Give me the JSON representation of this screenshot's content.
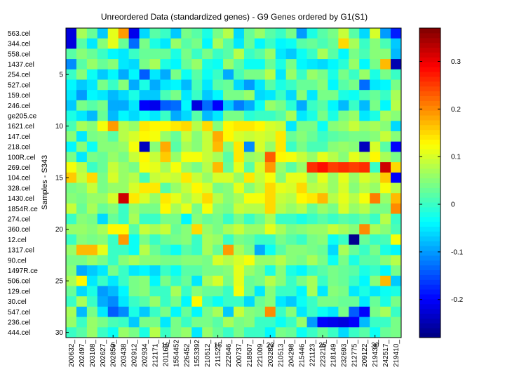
{
  "chart_data": {
    "type": "heatmap",
    "title": "Unreordered Data (standardized genes) - G9 Genes ordered by G1(S1)",
    "ylabel": "Samples - S343",
    "xlabel": "",
    "n_rows": 30,
    "n_cols": 32,
    "row_labels": [
      "563.cel",
      "344.cel",
      "558.cel",
      "1437.cel",
      "254.cel",
      "527.cel",
      "159.cel",
      "246.cel",
      "ge205.ce",
      "1621.cel",
      "147.cel",
      "218.cel",
      "100R.cel",
      "269.cel",
      "104.cel",
      "328.cel",
      "1430.cel",
      "1854R.ce",
      "274.cel",
      "360.cel",
      "12.cel",
      "1317.cel",
      "90.cel",
      "1497R.ce",
      "506.cel",
      "129.cel",
      "30.cel",
      "547.cel",
      "236.cel",
      "444.cel"
    ],
    "row_ticks": [
      5,
      10,
      15,
      20,
      25,
      30
    ],
    "col_labels": [
      "200632_",
      "202497_",
      "203108_",
      "202627_",
      "202859_",
      "203438_",
      "202912_",
      "202934_",
      "212171_",
      "201169_",
      "1554452",
      "226452_",
      "1553392",
      "210512_",
      "211527_",
      "222646_",
      "200737_",
      "218507_",
      "221009_",
      "203282_",
      "210513_",
      "204298_",
      "215446_",
      "221123_",
      "223216_",
      "218149_",
      "232693_",
      "212775_",
      "209122_",
      "219434_",
      "242517_",
      "219410_"
    ],
    "col_ticks": [
      5,
      10,
      15,
      20,
      25,
      30
    ],
    "colorbar_ticks": [
      -0.2,
      -0.1,
      0,
      0.1,
      0.2,
      0.3
    ],
    "colorbar_tick_labels": [
      "-0.2",
      "-0.1",
      "0",
      "0.1",
      "0.2",
      "0.3"
    ],
    "clim": [
      -0.28,
      0.37
    ],
    "colormap": "jet",
    "values": [
      [
        -0.22,
        0.07,
        0.03,
        -0.07,
        0.11,
        0.19,
        -0.21,
        -0.06,
        0.02,
        0.0,
        -0.07,
        0.04,
        0.02,
        -0.02,
        0.04,
        0.08,
        -0.06,
        0.03,
        0.06,
        0.02,
        0.0,
        0.04,
        -0.1,
        -0.02,
        0.02,
        0.04,
        0.09,
        0.02,
        -0.06,
        0.1,
        -0.1,
        -0.18
      ],
      [
        -0.22,
        0.02,
        -0.05,
        0.05,
        0.11,
        0.03,
        -0.13,
        0.04,
        -0.02,
        -0.05,
        0.06,
        0.02,
        0.04,
        -0.04,
        0.07,
        0.02,
        -0.05,
        0.03,
        -0.04,
        0.0,
        -0.04,
        -0.03,
        0.02,
        0.03,
        0.01,
        0.03,
        0.15,
        0.07,
        0.0,
        0.05,
        0.01,
        -0.07
      ],
      [
        0.02,
        0.05,
        0.03,
        0.0,
        -0.04,
        -0.05,
        0.0,
        0.03,
        0.03,
        0.03,
        -0.02,
        0.04,
        0.0,
        0.04,
        0.0,
        0.02,
        0.08,
        0.0,
        0.02,
        0.06,
        -0.05,
        -0.07,
        -0.03,
        0.0,
        0.07,
        0.02,
        -0.04,
        0.04,
        0.01,
        0.05,
        0.05,
        -0.08
      ],
      [
        -0.11,
        0.02,
        0.06,
        0.03,
        0.05,
        -0.05,
        -0.06,
        0.04,
        0.07,
        -0.02,
        -0.04,
        0.03,
        0.06,
        -0.02,
        -0.03,
        0.06,
        0.02,
        -0.03,
        -0.03,
        0.03,
        -0.02,
        0.04,
        -0.04,
        -0.05,
        -0.06,
        -0.04,
        -0.01,
        0.06,
        -0.04,
        0.04,
        0.17,
        -0.25
      ],
      [
        0.0,
        0.05,
        -0.03,
        -0.07,
        -0.04,
        -0.09,
        -0.04,
        -0.14,
        -0.05,
        -0.09,
        0.04,
        -0.03,
        0.02,
        -0.03,
        0.0,
        -0.09,
        0.01,
        0.04,
        0.04,
        0.08,
        -0.05,
        0.06,
        0.0,
        0.06,
        0.04,
        -0.02,
        0.04,
        0.0,
        0.06,
        -0.02,
        0.04,
        0.0
      ],
      [
        -0.04,
        -0.07,
        -0.05,
        0.04,
        0.0,
        0.05,
        -0.09,
        -0.02,
        -0.09,
        -0.05,
        -0.04,
        -0.08,
        0.01,
        -0.05,
        0.02,
        0.03,
        -0.06,
        -0.1,
        -0.05,
        0.02,
        -0.02,
        0.0,
        0.03,
        0.03,
        0.05,
        -0.04,
        0.02,
        0.04,
        -0.13,
        -0.05,
        -0.04,
        0.04
      ],
      [
        -0.05,
        -0.1,
        -0.04,
        -0.05,
        -0.08,
        -0.06,
        -0.02,
        -0.07,
        -0.07,
        0.01,
        0.04,
        -0.05,
        0.0,
        -0.07,
        -0.04,
        0.04,
        0.04,
        0.06,
        -0.06,
        -0.05,
        0.0,
        -0.06,
        0.05,
        -0.05,
        0.04,
        0.04,
        -0.02,
        -0.03,
        0.01,
        0.03,
        0.0,
        0.07
      ],
      [
        -0.07,
        0.04,
        0.02,
        0.04,
        -0.09,
        -0.09,
        -0.05,
        -0.2,
        -0.21,
        -0.14,
        -0.13,
        -0.04,
        -0.22,
        -0.13,
        -0.2,
        -0.07,
        -0.12,
        -0.09,
        -0.03,
        0.06,
        0.04,
        -0.01,
        -0.09,
        0.0,
        0.02,
        -0.04,
        -0.08,
        0.0,
        -0.08,
        0.04,
        -0.04,
        0.08
      ],
      [
        -0.02,
        -0.05,
        -0.08,
        0.03,
        -0.08,
        -0.04,
        -0.06,
        -0.03,
        -0.05,
        0.0,
        -0.09,
        -0.06,
        0.02,
        -0.08,
        -0.05,
        0.04,
        0.04,
        -0.01,
        0.0,
        0.0,
        0.02,
        0.07,
        -0.05,
        -0.02,
        0.04,
        -0.02,
        0.04,
        0.06,
        -0.05,
        -0.02,
        0.07,
        0.05
      ],
      [
        0.01,
        0.07,
        0.05,
        0.12,
        0.19,
        0.08,
        0.06,
        0.14,
        0.13,
        0.13,
        0.14,
        0.15,
        0.08,
        0.15,
        0.05,
        0.13,
        0.14,
        0.14,
        0.13,
        0.1,
        0.09,
        -0.05,
        0.04,
        0.04,
        -0.03,
        0.05,
        0.06,
        0.09,
        0.06,
        0.07,
        0.05,
        -0.06
      ],
      [
        0.05,
        -0.05,
        0.04,
        0.05,
        0.02,
        0.08,
        0.1,
        0.13,
        0.12,
        0.06,
        0.03,
        0.09,
        0.05,
        0.09,
        0.18,
        0.13,
        0.1,
        0.09,
        0.1,
        0.09,
        0.14,
        0.03,
        0.05,
        0.03,
        0.0,
        0.02,
        0.03,
        0.04,
        0.04,
        0.05,
        0.09,
        0.05
      ],
      [
        -0.04,
        0.05,
        -0.03,
        0.05,
        0.05,
        0.06,
        0.12,
        -0.24,
        0.05,
        0.18,
        0.02,
        0.07,
        0.05,
        0.09,
        0.17,
        0.05,
        0.14,
        -0.11,
        0.1,
        0.06,
        0.14,
        0.0,
        0.04,
        0.01,
        0.01,
        0.05,
        0.06,
        0.05,
        -0.24,
        0.1,
        0.02,
        -0.2
      ],
      [
        0.04,
        -0.05,
        0.04,
        0.03,
        0.06,
        0.04,
        0.09,
        0.13,
        0.09,
        0.16,
        0.06,
        0.12,
        0.12,
        0.09,
        0.07,
        0.02,
        0.14,
        0.06,
        0.07,
        0.23,
        0.13,
        0.12,
        0.09,
        0.06,
        0.11,
        0.08,
        0.05,
        0.11,
        0.08,
        0.13,
        0.07,
        0.04
      ],
      [
        0.12,
        0.08,
        0.0,
        0.03,
        0.09,
        0.06,
        0.04,
        0.12,
        0.11,
        0.07,
        0.12,
        0.06,
        0.04,
        0.08,
        0.17,
        0.03,
        0.11,
        0.02,
        0.1,
        0.19,
        0.06,
        0.02,
        0.06,
        0.26,
        0.28,
        0.25,
        0.26,
        0.25,
        0.26,
        0.0,
        0.32,
        0.15
      ],
      [
        0.16,
        0.09,
        0.15,
        0.04,
        0.1,
        0.06,
        0.08,
        0.01,
        0.09,
        0.1,
        0.09,
        0.14,
        0.09,
        0.06,
        0.1,
        0.1,
        0.06,
        0.14,
        0.09,
        0.12,
        0.05,
        0.11,
        0.11,
        0.06,
        0.11,
        0.06,
        0.11,
        0.06,
        0.1,
        0.08,
        0.16,
        -0.2
      ],
      [
        0.04,
        0.05,
        0.09,
        0.04,
        0.06,
        0.06,
        0.1,
        0.14,
        0.14,
        0.02,
        0.06,
        0.09,
        0.13,
        0.1,
        0.04,
        0.05,
        0.11,
        0.05,
        0.08,
        0.15,
        0.11,
        0.1,
        0.15,
        0.08,
        0.09,
        0.06,
        0.1,
        0.05,
        0.08,
        0.06,
        0.12,
        0.08
      ],
      [
        0.05,
        0.04,
        0.06,
        0.06,
        0.1,
        0.32,
        0.14,
        0.1,
        0.06,
        0.14,
        0.11,
        0.07,
        0.1,
        0.15,
        0.08,
        0.05,
        0.07,
        0.12,
        0.12,
        0.15,
        0.09,
        0.08,
        0.13,
        0.14,
        0.17,
        0.08,
        0.11,
        0.08,
        0.12,
        0.21,
        0.06,
        0.17
      ],
      [
        0.09,
        0.03,
        0.07,
        0.03,
        0.05,
        0.0,
        0.06,
        0.04,
        0.04,
        0.13,
        0.07,
        0.11,
        0.04,
        0.12,
        0.05,
        0.04,
        0.09,
        0.08,
        0.08,
        0.15,
        0.08,
        0.06,
        0.08,
        0.03,
        0.06,
        0.04,
        0.1,
        0.06,
        0.08,
        0.04,
        0.04,
        0.2
      ],
      [
        0.0,
        0.05,
        0.04,
        -0.06,
        0.03,
        0.0,
        0.07,
        0.0,
        0.0,
        0.04,
        0.04,
        -0.04,
        0.05,
        0.03,
        0.04,
        0.0,
        0.04,
        0.0,
        0.03,
        0.07,
        0.0,
        0.0,
        -0.02,
        0.0,
        0.02,
        0.0,
        0.02,
        0.01,
        0.03,
        0.0,
        0.08,
        0.0
      ],
      [
        0.06,
        0.06,
        0.05,
        0.07,
        0.13,
        0.13,
        0.02,
        0.09,
        0.07,
        0.09,
        0.03,
        0.05,
        0.15,
        0.06,
        0.04,
        0.07,
        0.09,
        0.06,
        0.06,
        0.11,
        0.07,
        0.04,
        0.05,
        0.06,
        0.06,
        0.09,
        0.07,
        0.05,
        0.2,
        0.07,
        0.05,
        0.01
      ],
      [
        0.0,
        0.05,
        0.04,
        0.05,
        0.0,
        0.19,
        -0.03,
        0.04,
        0.0,
        0.03,
        0.04,
        0.05,
        0.0,
        0.07,
        0.06,
        0.0,
        0.04,
        0.03,
        0.0,
        0.0,
        0.04,
        0.02,
        0.0,
        0.04,
        0.05,
        -0.03,
        0.0,
        -0.27,
        0.03,
        0.0,
        0.01,
        0.12
      ],
      [
        0.06,
        0.17,
        0.17,
        0.11,
        0.0,
        0.0,
        -0.03,
        0.08,
        0.03,
        0.0,
        -0.03,
        0.02,
        0.0,
        0.07,
        0.03,
        0.19,
        0.07,
        0.04,
        -0.09,
        -0.03,
        0.02,
        0.05,
        0.05,
        0.04,
        0.03,
        -0.06,
        0.07,
        0.03,
        0.0,
        0.04,
        -0.02,
        -0.04
      ],
      [
        0.04,
        0.04,
        0.06,
        0.04,
        0.0,
        0.05,
        0.07,
        0.05,
        0.05,
        0.04,
        0.04,
        0.05,
        0.05,
        0.04,
        0.1,
        0.08,
        0.1,
        0.12,
        0.06,
        0.06,
        0.08,
        0.05,
        0.04,
        0.07,
        0.04,
        -0.03,
        0.04,
        -0.02,
        0.02,
        0.02,
        0.05,
        0.08
      ],
      [
        0.05,
        -0.09,
        -0.07,
        -0.05,
        0.04,
        0.0,
        -0.05,
        -0.04,
        -0.06,
        0.0,
        -0.03,
        0.02,
        0.02,
        0.04,
        0.04,
        0.05,
        0.11,
        0.06,
        0.04,
        -0.02,
        0.05,
        -0.02,
        -0.04,
        0.0,
        0.02,
        0.04,
        0.03,
        0.02,
        -0.02,
        0.0,
        -0.04,
        0.04
      ],
      [
        0.07,
        0.13,
        -0.05,
        0.0,
        -0.05,
        0.0,
        0.04,
        0.05,
        -0.04,
        0.04,
        0.0,
        0.03,
        -0.05,
        0.07,
        0.1,
        0.04,
        0.11,
        0.03,
        0.04,
        0.08,
        0.05,
        0.0,
        0.04,
        0.07,
        0.0,
        0.04,
        0.03,
        0.0,
        -0.04,
        0.05,
        0.17,
        -0.07
      ],
      [
        0.03,
        -0.06,
        -0.02,
        -0.1,
        -0.08,
        -0.04,
        0.04,
        0.05,
        0.0,
        0.0,
        0.07,
        0.0,
        0.05,
        0.03,
        0.03,
        0.0,
        0.12,
        0.03,
        -0.05,
        0.05,
        0.0,
        0.0,
        -0.04,
        0.07,
        -0.05,
        0.05,
        0.04,
        -0.05,
        -0.02,
        -0.05,
        -0.03,
        -0.02
      ],
      [
        0.0,
        0.07,
        0.0,
        -0.09,
        -0.11,
        -0.05,
        0.0,
        0.02,
        0.06,
        0.0,
        0.04,
        -0.04,
        0.13,
        0.0,
        -0.03,
        0.0,
        0.0,
        -0.06,
        0.03,
        0.05,
        -0.05,
        -0.07,
        -0.03,
        0.0,
        0.04,
        0.04,
        0.03,
        0.03,
        -0.05,
        0.03,
        -0.02,
        0.04
      ],
      [
        0.07,
        -0.08,
        0.04,
        -0.05,
        -0.14,
        -0.11,
        -0.02,
        -0.07,
        0.0,
        0.04,
        -0.04,
        0.03,
        -0.04,
        0.04,
        0.07,
        -0.07,
        0.09,
        0.05,
        0.04,
        0.2,
        0.0,
        0.05,
        -0.05,
        0.0,
        -0.03,
        -0.05,
        0.04,
        -0.14,
        -0.2,
        0.04,
        0.07,
        0.0
      ],
      [
        0.06,
        0.0,
        0.06,
        0.04,
        0.01,
        0.0,
        -0.07,
        0.04,
        0.04,
        -0.05,
        0.04,
        0.0,
        0.04,
        0.04,
        0.02,
        0.07,
        0.04,
        0.05,
        0.0,
        0.0,
        -0.03,
        0.0,
        0.06,
        -0.1,
        -0.2,
        -0.21,
        -0.22,
        -0.2,
        -0.08,
        0.0,
        0.0,
        0.04
      ],
      [
        0.0,
        0.02,
        0.06,
        0.0,
        -0.03,
        0.06,
        0.04,
        -0.02,
        0.08,
        0.0,
        0.04,
        0.06,
        -0.05,
        0.06,
        0.03,
        0.0,
        0.04,
        0.0,
        0.0,
        -0.04,
        0.04,
        0.03,
        -0.03,
        0.0,
        0.03,
        0.0,
        -0.06,
        0.0,
        0.02,
        -0.03,
        0.03,
        0.04
      ]
    ]
  }
}
